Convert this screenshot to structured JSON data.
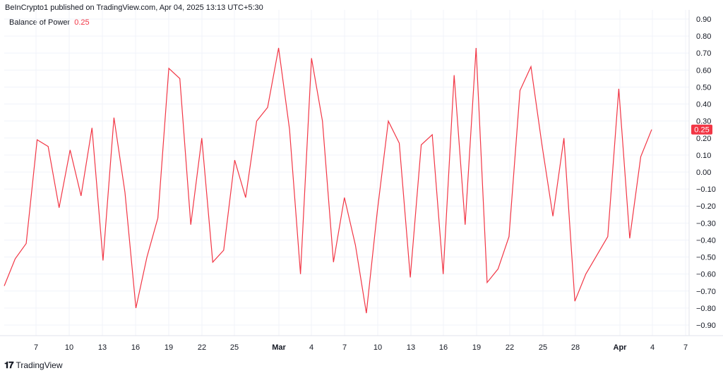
{
  "header": {
    "published": "BeInCrypto1 published on TradingView.com, Apr 04, 2025 13:13 UTC+5:30"
  },
  "legend": {
    "name": "Balance of Power",
    "value": "0.25"
  },
  "footer": {
    "brand": "TradingView",
    "logo_icon": "tradingview-logo-icon"
  },
  "colors": {
    "line": "#f23645",
    "badge": "#f23645",
    "grid": "#f0f3fa"
  },
  "chart_data": {
    "type": "line",
    "title": "",
    "xlabel": "",
    "ylabel": "",
    "ylim": [
      -0.95,
      0.95
    ],
    "grid": true,
    "y_ticks": [
      "0.90",
      "0.80",
      "0.70",
      "0.60",
      "0.50",
      "0.40",
      "0.30",
      "0.20",
      "0.10",
      "0.00",
      "−0.10",
      "−0.20",
      "−0.30",
      "−0.40",
      "−0.50",
      "−0.60",
      "−0.70",
      "−0.80",
      "−0.90"
    ],
    "y_tick_values": [
      0.9,
      0.8,
      0.7,
      0.6,
      0.5,
      0.4,
      0.3,
      0.2,
      0.1,
      0.0,
      -0.1,
      -0.2,
      -0.3,
      -0.4,
      -0.5,
      -0.6,
      -0.7,
      -0.8,
      -0.9
    ],
    "x_tick_labels": [
      "7",
      "10",
      "13",
      "16",
      "19",
      "22",
      "25",
      "Mar",
      "4",
      "7",
      "10",
      "13",
      "16",
      "19",
      "22",
      "25",
      "28",
      "Apr",
      "4",
      "7"
    ],
    "x_tick_bold": [
      false,
      false,
      false,
      false,
      false,
      false,
      false,
      true,
      false,
      false,
      false,
      false,
      false,
      false,
      false,
      false,
      false,
      true,
      false,
      false
    ],
    "last_value_label": "0.25",
    "series": [
      {
        "values": [
          -0.67,
          -0.51,
          -0.42,
          0.19,
          0.15,
          -0.21,
          0.13,
          -0.14,
          0.26,
          -0.52,
          0.32,
          -0.12,
          -0.8,
          -0.5,
          -0.27,
          0.61,
          0.55,
          -0.31,
          0.2,
          -0.53,
          -0.46,
          0.07,
          -0.15,
          0.3,
          0.38,
          0.73,
          0.25,
          -0.6,
          0.67,
          0.3,
          -0.53,
          -0.15,
          -0.43,
          -0.83,
          -0.23,
          0.3,
          0.17,
          -0.62,
          0.16,
          0.22,
          -0.6,
          0.57,
          -0.31,
          0.73,
          -0.65,
          -0.57,
          -0.38,
          0.48,
          0.62,
          0.16,
          -0.26,
          0.2,
          -0.76,
          -0.6,
          -0.49,
          -0.38,
          0.49,
          -0.39,
          0.09,
          0.25
        ]
      }
    ]
  }
}
